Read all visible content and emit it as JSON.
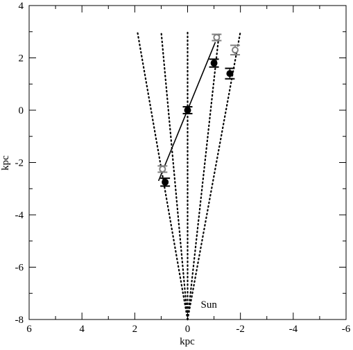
{
  "chart_data": {
    "type": "scatter",
    "xlabel": "kpc",
    "ylabel": "kpc",
    "xlim": [
      6,
      -6
    ],
    "ylim": [
      -8,
      4
    ],
    "x_ticks": [
      6,
      4,
      2,
      0,
      -2,
      -4,
      -6
    ],
    "y_ticks": [
      4,
      2,
      0,
      -2,
      -4,
      -6,
      -8
    ],
    "x_tick_labels": [
      "6",
      "4",
      "2",
      "0",
      "-2",
      "-4",
      "-6"
    ],
    "y_tick_labels": [
      "4",
      "2",
      "0",
      "-2",
      "-4",
      "-6",
      "-8"
    ],
    "grid": false,
    "annotations": [
      {
        "text": "Sun",
        "x": -0.5,
        "y": -7.55
      }
    ],
    "sightlines": {
      "origin": [
        0,
        -8
      ],
      "ends": [
        [
          1.9,
          3.0
        ],
        [
          1.0,
          3.0
        ],
        [
          0.0,
          3.0
        ],
        [
          -1.2,
          3.0
        ],
        [
          -2.0,
          3.0
        ]
      ],
      "style": "dotted"
    },
    "fit_line": {
      "x": [
        1.1,
        -1.05
      ],
      "y": [
        -2.7,
        2.6
      ]
    },
    "series": [
      {
        "marker": "filled-circle",
        "color": "#000000",
        "points": [
          {
            "x": 0.85,
            "y": -2.75,
            "yerr": 0.15
          },
          {
            "x": 0.0,
            "y": 0.0,
            "yerr": 0.13
          },
          {
            "x": -1.0,
            "y": 1.8,
            "yerr": 0.15
          },
          {
            "x": -1.6,
            "y": 1.4,
            "yerr": 0.2
          }
        ]
      },
      {
        "marker": "open-circle",
        "color": "#808080",
        "points": [
          {
            "x": 0.95,
            "y": -2.25,
            "yerr": 0.12
          },
          {
            "x": -1.1,
            "y": 2.78,
            "yerr": 0.12
          },
          {
            "x": -1.8,
            "y": 2.3,
            "yerr": 0.18
          }
        ]
      }
    ]
  }
}
